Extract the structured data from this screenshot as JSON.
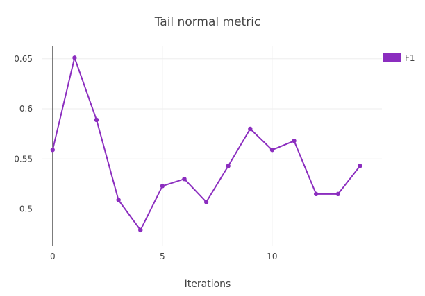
{
  "chart_data": {
    "type": "line",
    "title": "Tail normal metric",
    "xlabel": "Iterations",
    "ylabel": "",
    "x": [
      0,
      1,
      2,
      3,
      4,
      5,
      6,
      7,
      8,
      9,
      10,
      11,
      12,
      13,
      14
    ],
    "series": [
      {
        "name": "F1",
        "color": "#8b2dbf",
        "values": [
          0.559,
          0.651,
          0.589,
          0.509,
          0.479,
          0.523,
          0.53,
          0.507,
          0.543,
          0.58,
          0.559,
          0.568,
          0.515,
          0.515,
          0.543
        ]
      }
    ],
    "xlim": [
      -0.5,
      15
    ],
    "ylim": [
      0.463,
      0.663
    ],
    "xticks": [
      0,
      5,
      10
    ],
    "yticks": [
      0.5,
      0.55,
      0.6,
      0.65
    ],
    "ytick_labels": [
      "0.5",
      "0.55",
      "0.6",
      "0.65"
    ],
    "grid": true,
    "legend_position": "top-right"
  }
}
